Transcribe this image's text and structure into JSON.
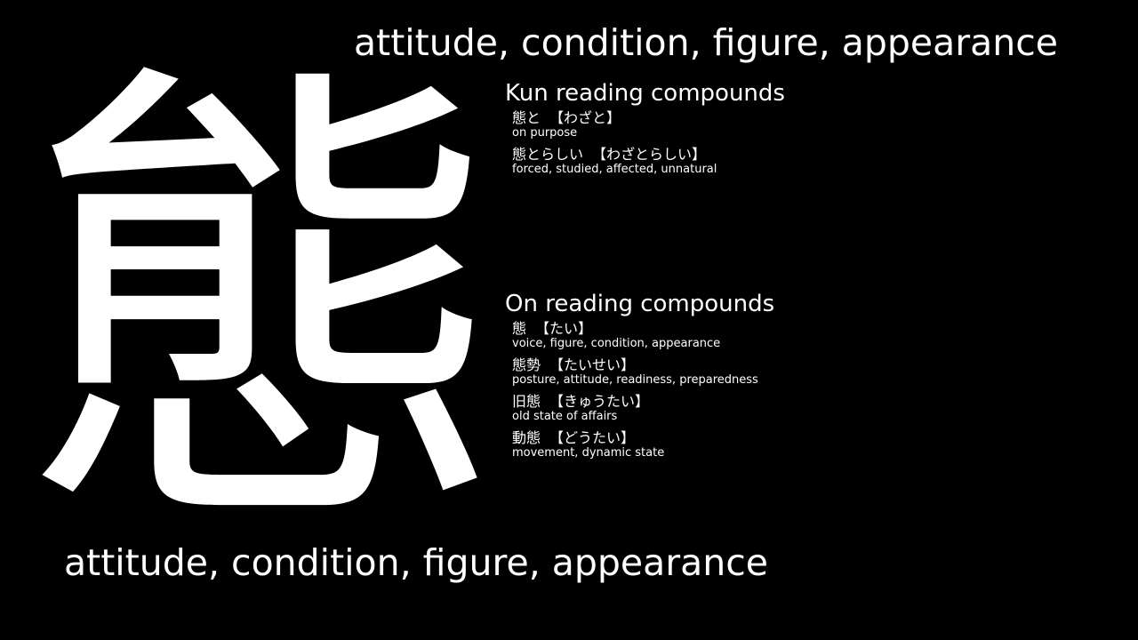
{
  "kanji": "態",
  "meaning_top": "attitude, condition, figure, appearance",
  "meaning_bottom": "attitude, condition, figure, appearance",
  "kun": {
    "title": "Kun reading compounds",
    "entries": [
      {
        "word": "態と",
        "reading": "【わざと】",
        "gloss": "on purpose"
      },
      {
        "word": "態とらしい",
        "reading": "【わざとらしい】",
        "gloss": "forced, studied, affected, unnatural"
      }
    ]
  },
  "on": {
    "title": "On reading compounds",
    "entries": [
      {
        "word": "態",
        "reading": "【たい】",
        "gloss": "voice, figure, condition, appearance"
      },
      {
        "word": "態勢",
        "reading": "【たいせい】",
        "gloss": "posture, attitude, readiness, preparedness"
      },
      {
        "word": "旧態",
        "reading": "【きゅうたい】",
        "gloss": "old state of affairs"
      },
      {
        "word": "動態",
        "reading": "【どうたい】",
        "gloss": "movement, dynamic state"
      }
    ]
  },
  "colors": {
    "background": "#000000",
    "text": "#ffffff"
  }
}
